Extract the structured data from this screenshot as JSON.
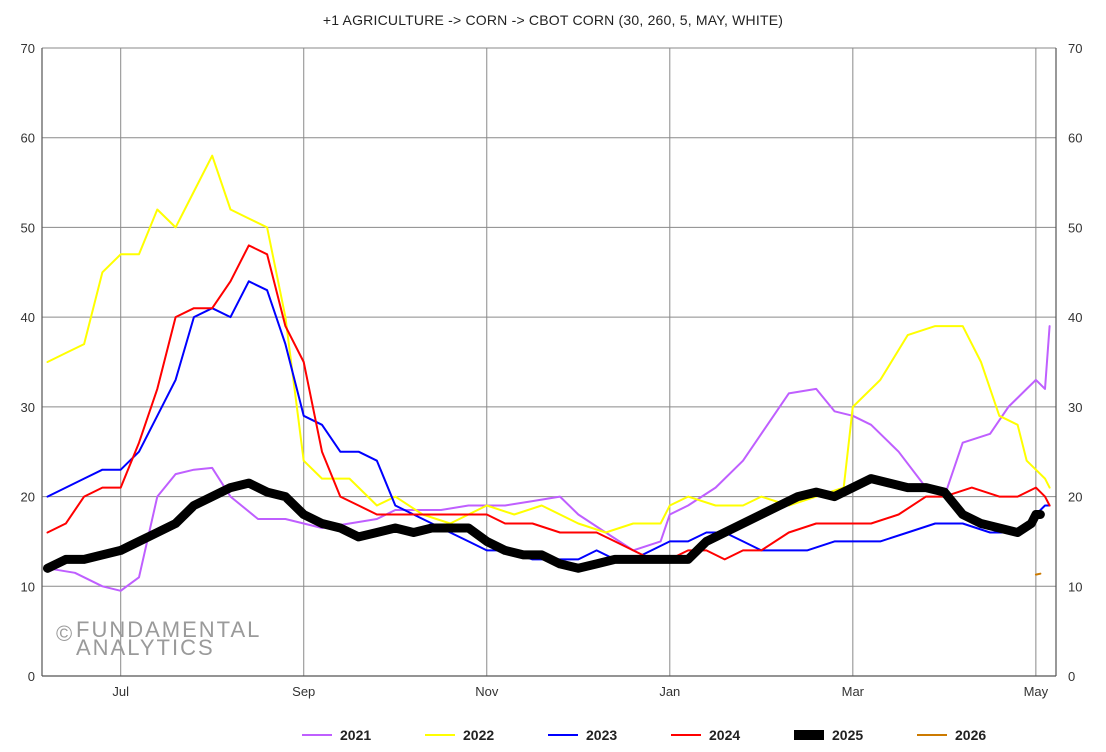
{
  "watermark": {
    "line1": "FUNDAMENTAL",
    "line2": "ANALYTICS",
    "symbol": "©"
  },
  "chart_data": {
    "type": "line",
    "title": "+1 AGRICULTURE -> CORN -> CBOT CORN (30, 260, 5, MAY, WHITE)",
    "xlabel": "",
    "ylabel": "",
    "ylim": [
      0,
      70
    ],
    "yticks": [
      0,
      10,
      20,
      30,
      40,
      50,
      60,
      70
    ],
    "x_ticks": [
      "Jul",
      "Sep",
      "Nov",
      "Jan",
      "Mar",
      "May"
    ],
    "x_tick_months": [
      1,
      3,
      5,
      7,
      9,
      11
    ],
    "xlim_months": [
      0.14,
      11.22
    ],
    "grid": true,
    "legend_position": "bottom",
    "series": [
      {
        "name": "2021",
        "color": "#bf5fff",
        "width": 2,
        "x": [
          0.2,
          0.5,
          0.8,
          1.0,
          1.2,
          1.4,
          1.6,
          1.8,
          2.0,
          2.2,
          2.5,
          2.8,
          3.0,
          3.2,
          3.5,
          3.8,
          4.0,
          4.2,
          4.5,
          4.8,
          5.0,
          5.2,
          5.5,
          5.8,
          6.0,
          6.3,
          6.6,
          6.9,
          7.0,
          7.2,
          7.5,
          7.8,
          8.0,
          8.3,
          8.6,
          8.8,
          9.0,
          9.2,
          9.5,
          9.8,
          10.0,
          10.2,
          10.5,
          10.7,
          10.9,
          11.0,
          11.1,
          11.15
        ],
        "y": [
          12,
          11.5,
          10,
          9.5,
          11,
          20,
          22.5,
          23,
          23.2,
          20,
          17.5,
          17.5,
          17,
          16.5,
          17,
          17.5,
          18.5,
          18.5,
          18.5,
          19,
          19,
          19,
          19.5,
          20,
          18,
          16,
          14,
          15,
          18,
          19,
          21,
          24,
          27,
          31.5,
          32,
          29.5,
          29,
          28,
          25,
          21,
          20,
          26,
          27,
          30,
          32,
          33,
          32,
          39
        ]
      },
      {
        "name": "2022",
        "color": "#ffff00",
        "width": 2,
        "x": [
          0.2,
          0.4,
          0.6,
          0.8,
          1.0,
          1.2,
          1.4,
          1.6,
          1.8,
          2.0,
          2.2,
          2.4,
          2.6,
          2.8,
          3.0,
          3.2,
          3.5,
          3.8,
          4.0,
          4.3,
          4.6,
          5.0,
          5.3,
          5.6,
          6.0,
          6.3,
          6.6,
          6.9,
          7.0,
          7.2,
          7.5,
          7.8,
          8.0,
          8.3,
          8.6,
          8.9,
          9.0,
          9.3,
          9.6,
          9.9,
          10.2,
          10.4,
          10.6,
          10.8,
          10.9,
          11.0,
          11.1,
          11.15
        ],
        "y": [
          35,
          36,
          37,
          45,
          47,
          47,
          52,
          50,
          54,
          58,
          52,
          51,
          50,
          40,
          24,
          22,
          22,
          19,
          20,
          18,
          17,
          19,
          18,
          19,
          17,
          16,
          17,
          17,
          19,
          20,
          19,
          19,
          20,
          19,
          20,
          21,
          30,
          33,
          38,
          39,
          39,
          35,
          29,
          28,
          24,
          23,
          22,
          21
        ]
      },
      {
        "name": "2023",
        "color": "#0000ff",
        "width": 2,
        "x": [
          0.2,
          0.4,
          0.6,
          0.8,
          1.0,
          1.2,
          1.4,
          1.6,
          1.8,
          2.0,
          2.2,
          2.4,
          2.6,
          2.8,
          3.0,
          3.2,
          3.4,
          3.6,
          3.8,
          4.0,
          4.2,
          4.4,
          4.6,
          4.8,
          5.0,
          5.2,
          5.5,
          5.8,
          6.0,
          6.2,
          6.4,
          6.6,
          6.8,
          7.0,
          7.2,
          7.4,
          7.6,
          7.8,
          8.0,
          8.2,
          8.5,
          8.8,
          9.0,
          9.3,
          9.6,
          9.9,
          10.2,
          10.5,
          10.8,
          11.0,
          11.1,
          11.15
        ],
        "y": [
          20,
          21,
          22,
          23,
          23,
          25,
          29,
          33,
          40,
          41,
          40,
          44,
          43,
          37,
          29,
          28,
          25,
          25,
          24,
          19,
          18,
          17,
          16,
          15,
          14,
          14,
          13,
          13,
          13,
          14,
          13,
          13,
          14,
          15,
          15,
          16,
          16,
          15,
          14,
          14,
          14,
          15,
          15,
          15,
          16,
          17,
          17,
          16,
          16,
          18,
          19,
          19
        ]
      },
      {
        "name": "2024",
        "color": "#ff0000",
        "width": 2,
        "x": [
          0.2,
          0.4,
          0.6,
          0.8,
          1.0,
          1.2,
          1.4,
          1.6,
          1.8,
          2.0,
          2.2,
          2.4,
          2.6,
          2.8,
          3.0,
          3.2,
          3.4,
          3.6,
          3.8,
          4.0,
          4.3,
          4.6,
          5.0,
          5.2,
          5.5,
          5.8,
          6.0,
          6.2,
          6.4,
          6.6,
          6.8,
          7.0,
          7.2,
          7.4,
          7.6,
          7.8,
          8.0,
          8.3,
          8.6,
          8.9,
          9.2,
          9.5,
          9.8,
          10.0,
          10.3,
          10.6,
          10.8,
          11.0,
          11.1,
          11.15
        ],
        "y": [
          16,
          17,
          20,
          21,
          21,
          26,
          32,
          40,
          41,
          41,
          44,
          48,
          47,
          39,
          35,
          25,
          20,
          19,
          18,
          18,
          18,
          18,
          18,
          17,
          17,
          16,
          16,
          16,
          15,
          14,
          13,
          13,
          14,
          14,
          13,
          14,
          14,
          16,
          17,
          17,
          17,
          18,
          20,
          20,
          21,
          20,
          20,
          21,
          20,
          19
        ]
      },
      {
        "name": "2025",
        "color": "#000000",
        "width": 9,
        "x": [
          0.2,
          0.4,
          0.6,
          0.8,
          1.0,
          1.2,
          1.4,
          1.6,
          1.8,
          2.0,
          2.2,
          2.4,
          2.6,
          2.8,
          3.0,
          3.2,
          3.4,
          3.6,
          3.8,
          4.0,
          4.2,
          4.4,
          4.6,
          4.8,
          5.0,
          5.2,
          5.4,
          5.6,
          5.8,
          6.0,
          6.2,
          6.4,
          6.6,
          6.8,
          7.0,
          7.2,
          7.4,
          7.6,
          7.8,
          8.0,
          8.2,
          8.4,
          8.6,
          8.8,
          9.0,
          9.2,
          9.4,
          9.6,
          9.8,
          10.0,
          10.2,
          10.4,
          10.6,
          10.8,
          10.95,
          11.0,
          11.05
        ],
        "y": [
          12,
          13,
          13,
          13.5,
          14,
          15,
          16,
          17,
          19,
          20,
          21,
          21.5,
          20.5,
          20,
          18,
          17,
          16.5,
          15.5,
          16,
          16.5,
          16,
          16.5,
          16.5,
          16.5,
          15,
          14,
          13.5,
          13.5,
          12.5,
          12,
          12.5,
          13,
          13,
          13,
          13,
          13,
          15,
          16,
          17,
          18,
          19,
          20,
          20.5,
          20,
          21,
          22,
          21.5,
          21,
          21,
          20.5,
          18,
          17,
          16.5,
          16,
          17,
          18,
          18
        ]
      },
      {
        "name": "2026",
        "color": "#cc7a00",
        "width": 2,
        "x": [
          11.0,
          11.05
        ],
        "y": [
          11.3,
          11.4
        ]
      }
    ]
  }
}
